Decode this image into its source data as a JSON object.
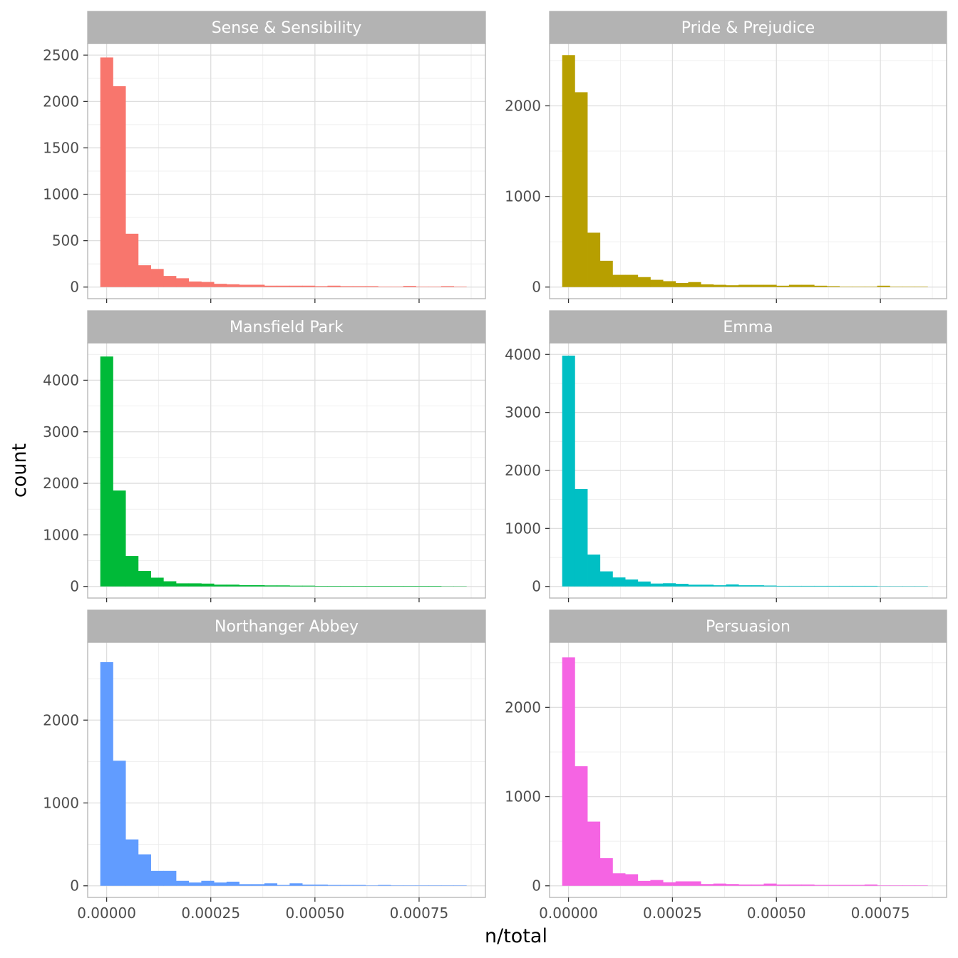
{
  "chart_data": {
    "type": "bar",
    "subtype": "faceted-histogram",
    "xlabel": "n/total",
    "ylabel": "count",
    "bin_width": 3.03e-05,
    "x_bin_start": -1.52e-05,
    "bins": 29,
    "xlim": [
      -4.55e-05,
      0.0009092
    ],
    "x_ticks": [
      0,
      0.00025,
      0.0005,
      0.00075
    ],
    "x_tick_labels": [
      "0.00000",
      "0.00025",
      "0.00050",
      "0.00075"
    ],
    "grid": true,
    "panels": [
      {
        "title": "Sense & Sensibility",
        "color": "#F8766D",
        "ylim": [
          -125,
          2625
        ],
        "y_ticks": [
          0,
          500,
          1000,
          1500,
          2000,
          2500
        ],
        "y_tick_labels": [
          "0",
          "500",
          "1000",
          "1500",
          "2000",
          "2500"
        ],
        "values": [
          2475,
          2165,
          575,
          235,
          195,
          120,
          95,
          60,
          55,
          35,
          30,
          25,
          25,
          15,
          15,
          15,
          15,
          10,
          15,
          10,
          10,
          10,
          5,
          5,
          12,
          5,
          5,
          10,
          5
        ]
      },
      {
        "title": "Pride & Prejudice",
        "color": "#B79F00",
        "ylim": [
          -128,
          2688
        ],
        "y_ticks": [
          0,
          1000,
          2000
        ],
        "y_tick_labels": [
          "0",
          "1000",
          "2000"
        ],
        "values": [
          2560,
          2150,
          600,
          290,
          135,
          135,
          110,
          80,
          65,
          45,
          55,
          30,
          25,
          20,
          25,
          25,
          25,
          15,
          25,
          25,
          15,
          10,
          5,
          5,
          5,
          15,
          5,
          5,
          5
        ]
      },
      {
        "title": "Mansfield Park",
        "color": "#00BA38",
        "ylim": [
          -225,
          4725
        ],
        "y_ticks": [
          0,
          1000,
          2000,
          3000,
          4000
        ],
        "y_tick_labels": [
          "0",
          "1000",
          "2000",
          "3000",
          "4000"
        ],
        "values": [
          4460,
          1860,
          590,
          300,
          170,
          100,
          60,
          60,
          55,
          35,
          35,
          25,
          25,
          20,
          20,
          15,
          15,
          10,
          10,
          10,
          10,
          10,
          10,
          10,
          10,
          10,
          10,
          5,
          5
        ]
      },
      {
        "title": "Emma",
        "color": "#00BFC4",
        "ylim": [
          -200,
          4200
        ],
        "y_ticks": [
          0,
          1000,
          2000,
          3000,
          4000
        ],
        "y_tick_labels": [
          "0",
          "1000",
          "2000",
          "3000",
          "4000"
        ],
        "values": [
          3980,
          1680,
          550,
          260,
          155,
          120,
          85,
          50,
          55,
          45,
          30,
          30,
          20,
          35,
          20,
          20,
          15,
          10,
          10,
          10,
          10,
          10,
          10,
          10,
          10,
          5,
          5,
          5,
          5
        ]
      },
      {
        "title": "Northanger Abbey",
        "color": "#619CFF",
        "ylim": [
          -140,
          2940
        ],
        "y_ticks": [
          0,
          1000,
          2000
        ],
        "y_tick_labels": [
          "0",
          "1000",
          "2000"
        ],
        "values": [
          2700,
          1510,
          560,
          380,
          180,
          180,
          60,
          40,
          60,
          40,
          50,
          20,
          20,
          30,
          10,
          30,
          15,
          15,
          10,
          10,
          10,
          5,
          10,
          5,
          5,
          5,
          5,
          5,
          5
        ]
      },
      {
        "title": "Persuasion",
        "color": "#F564E3",
        "ylim": [
          -130,
          2730
        ],
        "y_ticks": [
          0,
          1000,
          2000
        ],
        "y_tick_labels": [
          "0",
          "1000",
          "2000"
        ],
        "values": [
          2560,
          1340,
          720,
          310,
          140,
          130,
          55,
          65,
          40,
          50,
          50,
          20,
          25,
          20,
          15,
          15,
          25,
          15,
          15,
          15,
          10,
          10,
          10,
          10,
          15,
          5,
          5,
          5,
          5
        ]
      }
    ]
  }
}
